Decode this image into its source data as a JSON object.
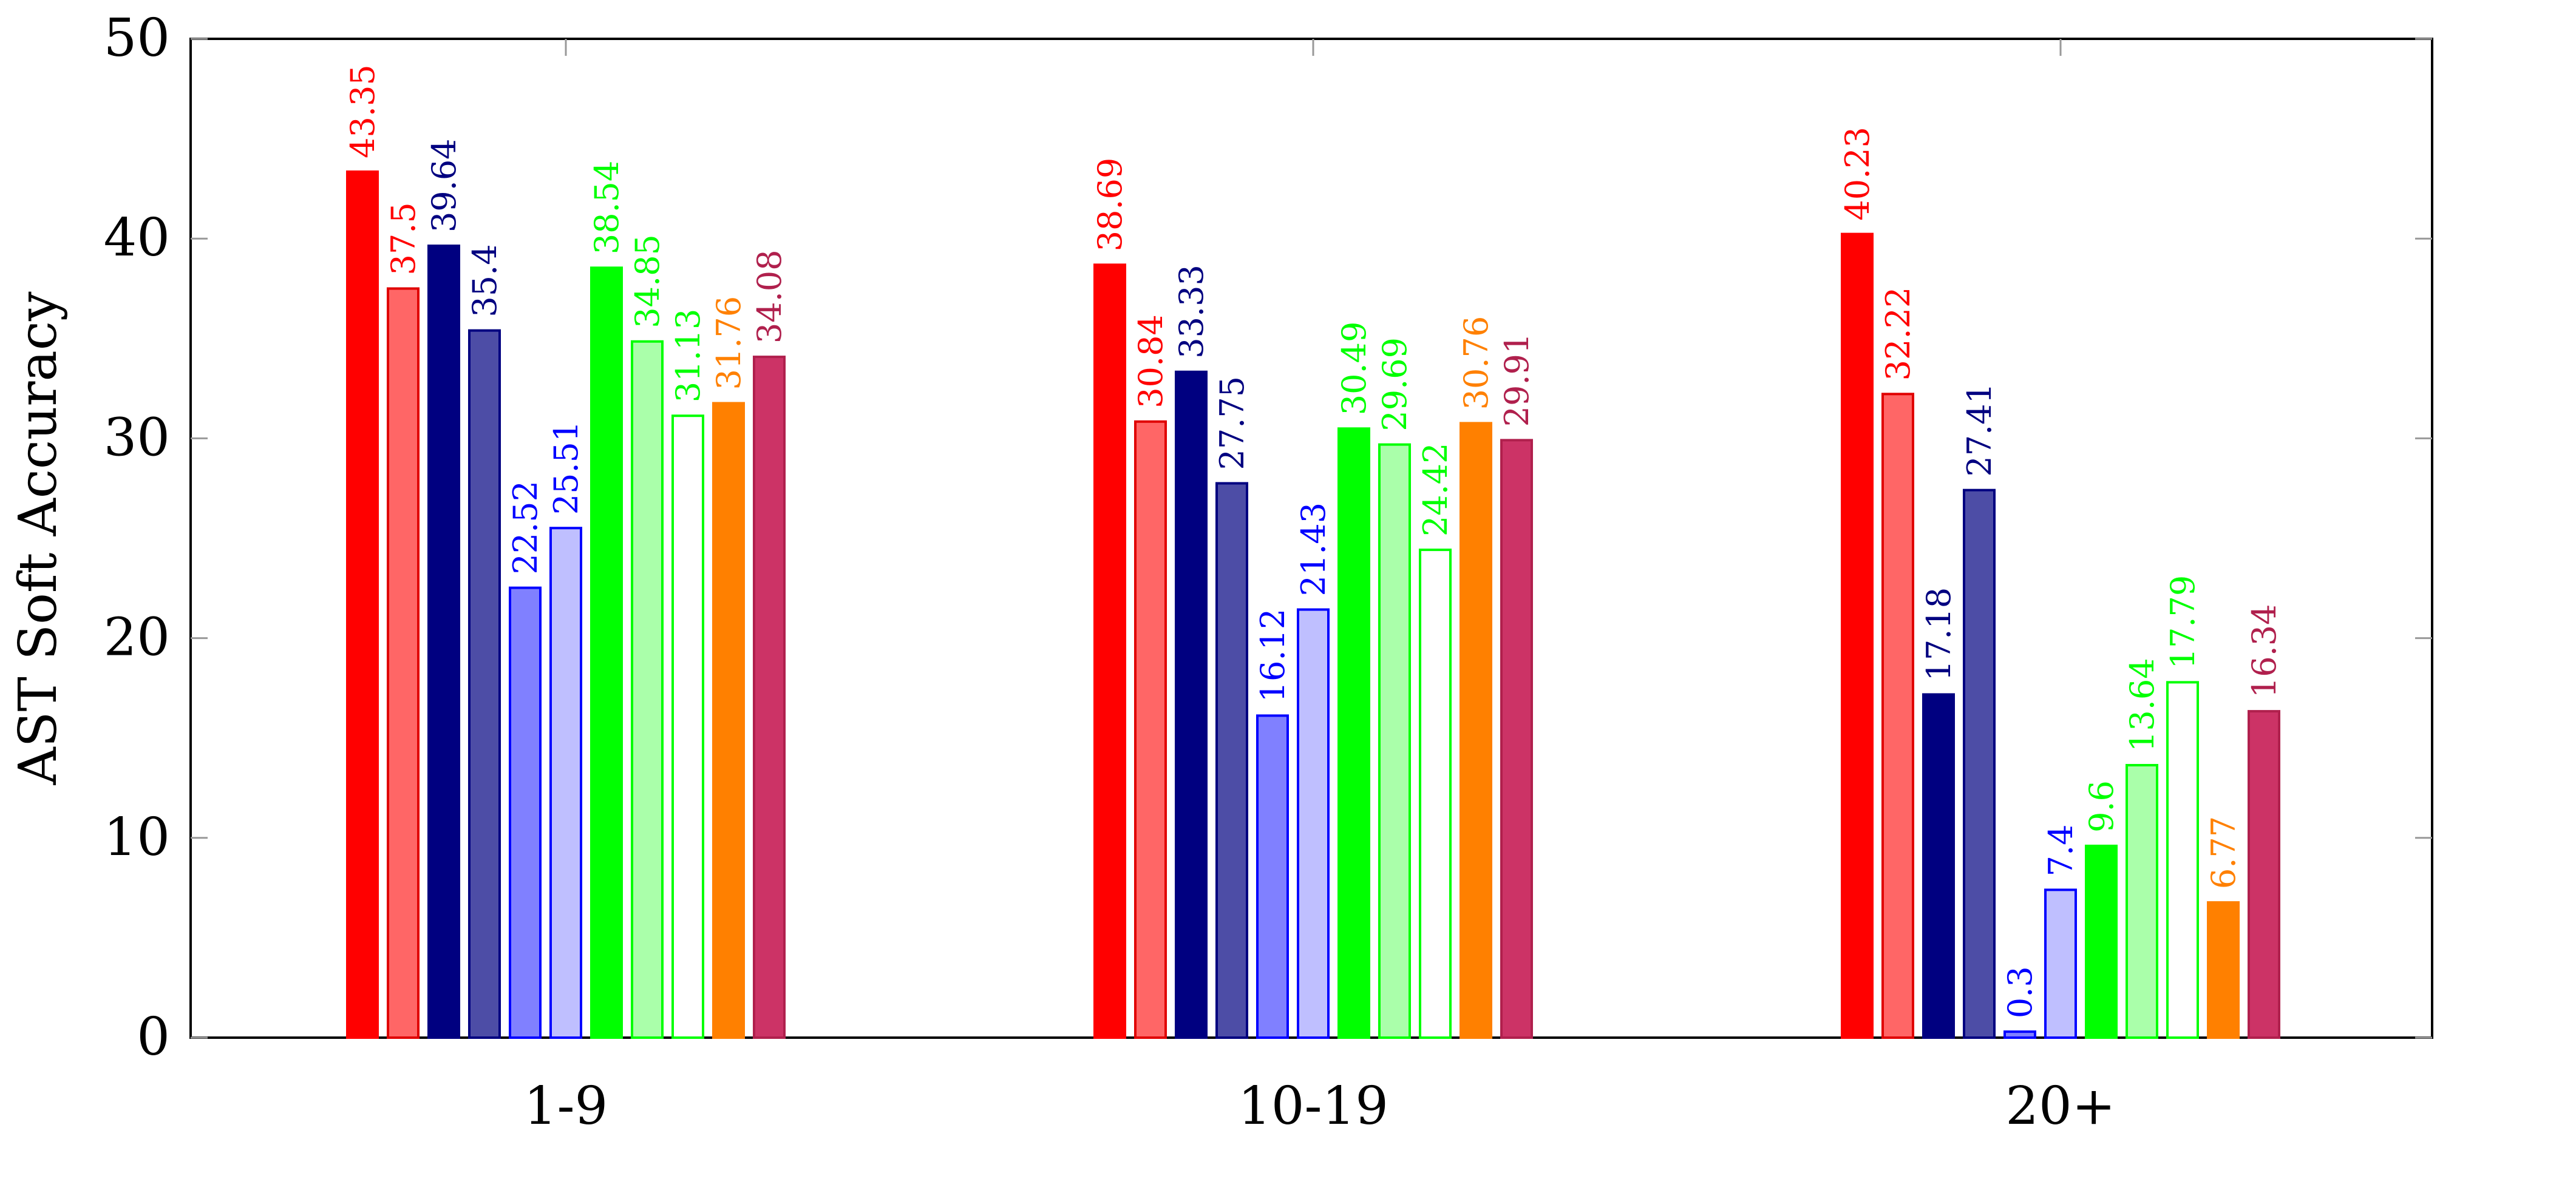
{
  "chart_data": {
    "type": "bar",
    "title": "",
    "xlabel": "",
    "ylabel": "AST Soft Accuracy",
    "categories": [
      "1-9",
      "10-19",
      "20+"
    ],
    "ylim": [
      0,
      50
    ],
    "yticks": [
      "0",
      "10",
      "20",
      "30",
      "40",
      "50"
    ],
    "grid": false,
    "legend": "none",
    "series": [
      {
        "color": "#ff0000",
        "fill": "#ff0000",
        "stroke": "#ff0000",
        "label_color": "#ff0000",
        "values": [
          43.35,
          38.69,
          40.23
        ],
        "labels": [
          "43.35",
          "38.69",
          "40.23"
        ]
      },
      {
        "color": "#ff6666",
        "fill": "#ff6666",
        "stroke": "#e00000",
        "label_color": "#ff0000",
        "values": [
          37.5,
          30.84,
          32.22
        ],
        "labels": [
          "37.5",
          "30.84",
          "32.22"
        ]
      },
      {
        "color": "#000080",
        "fill": "#000080",
        "stroke": "#000080",
        "label_color": "#000080",
        "values": [
          39.64,
          33.33,
          17.18
        ],
        "labels": [
          "39.64",
          "33.33",
          "17.18"
        ]
      },
      {
        "color": "#4d4da6",
        "fill": "#4d4da6",
        "stroke": "#000080",
        "label_color": "#000080",
        "values": [
          35.4,
          27.75,
          27.41
        ],
        "labels": [
          "35.4",
          "27.75",
          "27.41"
        ]
      },
      {
        "color": "#8080ff",
        "fill": "#8080ff",
        "stroke": "#0000ff",
        "label_color": "#0000ff",
        "values": [
          22.52,
          16.12,
          0.3
        ],
        "labels": [
          "22.52",
          "16.12",
          "0.3"
        ]
      },
      {
        "color": "#bfbfff",
        "fill": "#bfbfff",
        "stroke": "#0000ff",
        "label_color": "#0000ff",
        "values": [
          25.51,
          21.43,
          7.4
        ],
        "labels": [
          "25.51",
          "21.43",
          "7.4"
        ]
      },
      {
        "color": "#00ff00",
        "fill": "#00ff00",
        "stroke": "#00ff00",
        "label_color": "#00ff00",
        "values": [
          38.54,
          30.49,
          9.6
        ],
        "labels": [
          "38.54",
          "30.49",
          "9.6"
        ]
      },
      {
        "color": "#aaffaa",
        "fill": "#aaffaa",
        "stroke": "#00ff00",
        "label_color": "#00ff00",
        "values": [
          34.85,
          29.69,
          13.64
        ],
        "labels": [
          "34.85",
          "29.69",
          "13.64"
        ]
      },
      {
        "color": "#00ff00",
        "fill": "#ffffff",
        "stroke": "#00ff00",
        "label_color": "#00ff00",
        "values": [
          31.13,
          24.42,
          17.79
        ],
        "labels": [
          "31.13",
          "24.42",
          "17.79"
        ]
      },
      {
        "color": "#ff8000",
        "fill": "#ff8000",
        "stroke": "#ff8000",
        "label_color": "#ff8000",
        "values": [
          31.76,
          30.76,
          6.77
        ],
        "labels": [
          "31.76",
          "30.76",
          "6.77"
        ]
      },
      {
        "color": "#cc3366",
        "fill": "#cc3366",
        "stroke": "#b0204d",
        "label_color": "#b0204d",
        "values": [
          34.08,
          29.91,
          16.34
        ],
        "labels": [
          "34.08",
          "29.91",
          "16.34"
        ]
      }
    ]
  }
}
